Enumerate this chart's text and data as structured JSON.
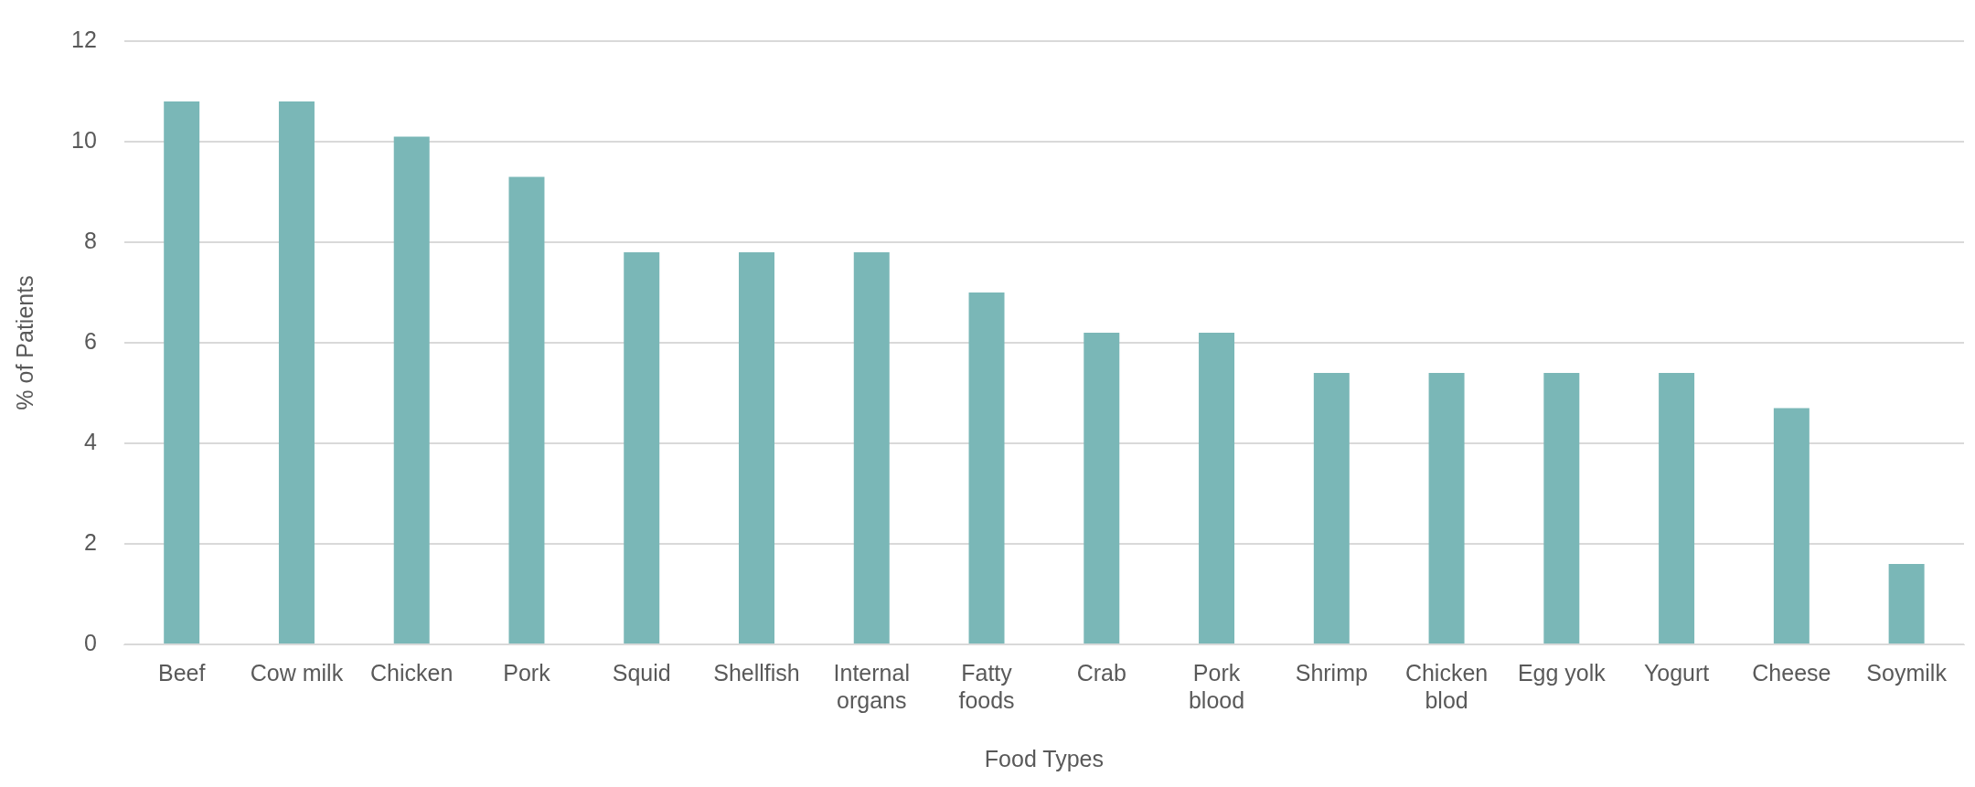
{
  "chart_data": {
    "type": "bar",
    "xlabel": "Food Types",
    "ylabel": "% of Patients",
    "categories": [
      "Beef",
      "Cow milk",
      "Chicken",
      "Pork",
      "Squid",
      "Shellfish",
      "Internal organs",
      "Fatty foods",
      "Crab",
      "Pork blood",
      "Shrimp",
      "Chicken blod",
      "Egg yolk",
      "Yogurt",
      "Cheese",
      "Soymilk"
    ],
    "values": [
      10.8,
      10.8,
      10.1,
      9.3,
      7.8,
      7.8,
      7.8,
      7.0,
      6.2,
      6.2,
      5.4,
      5.4,
      5.4,
      5.4,
      4.7,
      1.6
    ],
    "color": "#7ab7b7",
    "ylim": [
      0,
      12
    ],
    "yticks": [
      0,
      2,
      4,
      6,
      8,
      10,
      12
    ],
    "grid": "y",
    "legend": false
  }
}
